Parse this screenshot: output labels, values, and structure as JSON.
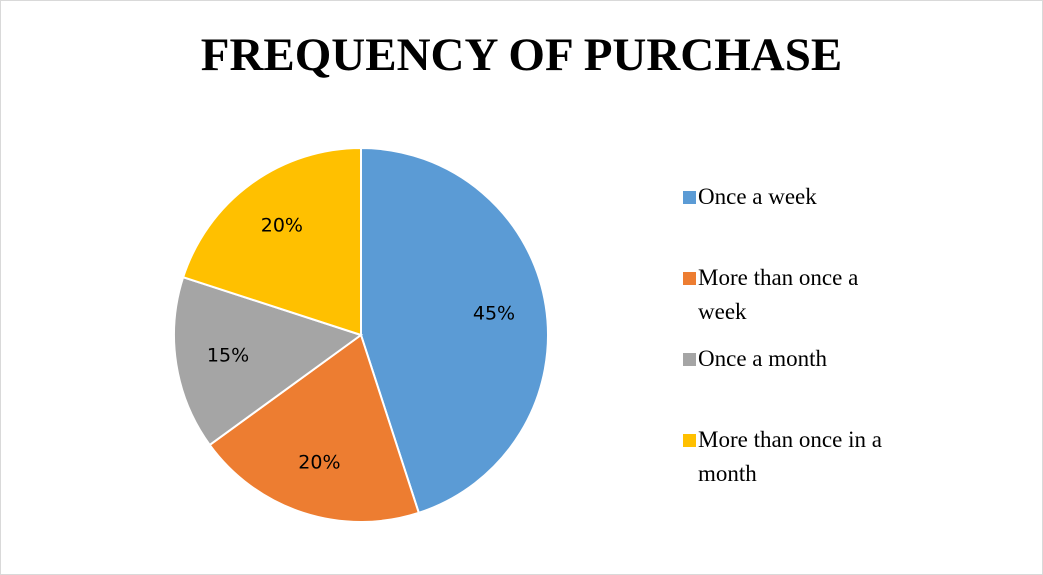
{
  "chart_data": {
    "type": "pie",
    "title": "FREQUENCY OF PURCHASE",
    "categories": [
      "Once a week",
      "More than once a week",
      "Once a month",
      "More than once in a month"
    ],
    "values": [
      45,
      20,
      15,
      20
    ],
    "value_labels": [
      "45%",
      "20%",
      "15%",
      "20%"
    ],
    "colors": [
      "#5b9bd5",
      "#ed7d31",
      "#a5a5a5",
      "#ffc000"
    ],
    "legend": "right"
  }
}
